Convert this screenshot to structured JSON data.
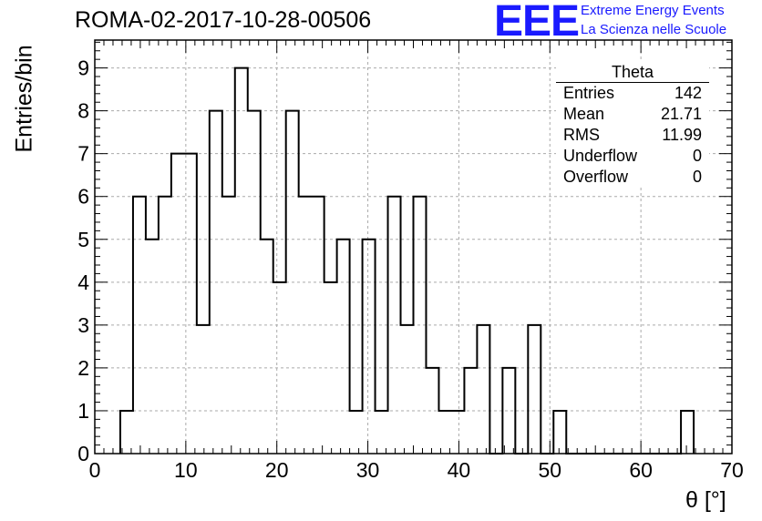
{
  "title": "ROMA-02-2017-10-28-00506",
  "logo": {
    "mark": "EEE",
    "line1": "Extreme Energy Events",
    "line2": "La Scienza nelle Scuole",
    "color": "#1a1aff"
  },
  "stats_box": {
    "title": "Theta",
    "rows": [
      {
        "label": "Entries",
        "value": "142"
      },
      {
        "label": "Mean",
        "value": "21.71"
      },
      {
        "label": "RMS",
        "value": "11.99"
      },
      {
        "label": "Underflow",
        "value": "0"
      },
      {
        "label": "Overflow",
        "value": "0"
      }
    ]
  },
  "chart_data": {
    "type": "bar",
    "histogram_style": "step",
    "title": "ROMA-02-2017-10-28-00506",
    "xlabel": "θ [°]",
    "ylabel": "Entries/bin",
    "xlim": [
      0,
      70
    ],
    "ylim": [
      0,
      9.65
    ],
    "grid": true,
    "x_ticks": [
      0,
      10,
      20,
      30,
      40,
      50,
      60,
      70
    ],
    "y_ticks": [
      0,
      1,
      2,
      3,
      4,
      5,
      6,
      7,
      8,
      9
    ],
    "bin_width": 1.4,
    "bin_edges_start": 2.8,
    "values": [
      1,
      6,
      5,
      6,
      7,
      7,
      3,
      8,
      6,
      9,
      8,
      5,
      4,
      8,
      6,
      6,
      4,
      5,
      1,
      5,
      1,
      6,
      3,
      6,
      2,
      1,
      1,
      2,
      3,
      0,
      2,
      0,
      3,
      0,
      1,
      0,
      0,
      0,
      0,
      0,
      0,
      0,
      0,
      0,
      1
    ],
    "line_color": "#000000",
    "grid_color": "#aaaaaa"
  }
}
